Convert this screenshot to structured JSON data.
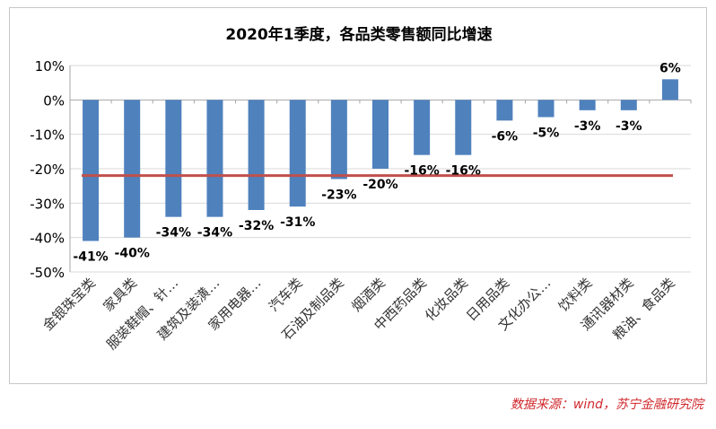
{
  "chart_data": {
    "type": "bar",
    "title": "2020年1季度，各品类零售额同比增速",
    "categories": [
      "金银珠宝类",
      "家具类",
      "服装鞋帽、针…",
      "建筑及装潢…",
      "家用电器…",
      "汽车类",
      "石油及制品类",
      "烟酒类",
      "中西药品类",
      "化妆品类",
      "日用品类",
      "文化办公…",
      "饮料类",
      "通讯器材类",
      "粮油、食品类"
    ],
    "values": [
      -41,
      -40,
      -34,
      -34,
      -32,
      -31,
      -23,
      -20,
      -16,
      -16,
      -6,
      -5,
      -3,
      -3,
      6
    ],
    "data_labels": [
      "-41%",
      "-40%",
      "-34%",
      "-34%",
      "-32%",
      "-31%",
      "-23%",
      "-20%",
      "-16%",
      "-16%",
      "-6%",
      "-5%",
      "-3%",
      "-3%",
      "6%"
    ],
    "y_ticks": [
      "10%",
      "0%",
      "-10%",
      "-20%",
      "-30%",
      "-40%",
      "-50%"
    ],
    "y_tick_values": [
      10,
      0,
      -10,
      -20,
      -30,
      -40,
      -50
    ],
    "ylim": [
      -50,
      10
    ],
    "reference_line": -22,
    "grid": true,
    "colors": {
      "bar": "#4f81bd",
      "reference_line": "#c0504d",
      "grid": "#d9d9d9"
    }
  },
  "source": "数据来源：wind，苏宁金融研究院"
}
